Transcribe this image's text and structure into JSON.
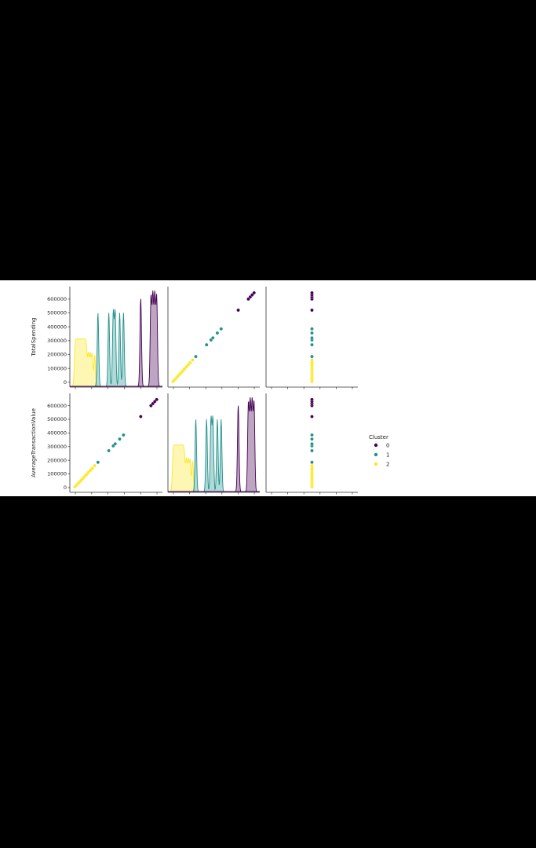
{
  "chart_data": {
    "type": "scatter",
    "variables": [
      "TotalSpending",
      "AverageTransactionValue"
    ],
    "ylabels": [
      "TotalSpending",
      "AverageTransactionValue"
    ],
    "yticks": [
      0,
      100000,
      200000,
      300000,
      400000,
      500000,
      600000
    ],
    "ytick_labels": [
      "0",
      "100000",
      "200000",
      "300000",
      "400000",
      "500000",
      "600000"
    ],
    "grid": false,
    "legend": {
      "title": "Cluster",
      "placement": "right",
      "entries": [
        {
          "label": "0",
          "color": "#440154"
        },
        {
          "label": "1",
          "color": "#21918c"
        },
        {
          "label": "2",
          "color": "#fde725"
        }
      ]
    },
    "series": [
      {
        "cluster": "0",
        "color": "#440154",
        "values": [
          520000,
          600000,
          615000,
          630000,
          645000
        ]
      },
      {
        "cluster": "1",
        "color": "#21918c",
        "values": [
          185000,
          270000,
          305000,
          320000,
          355000,
          385000
        ]
      },
      {
        "cluster": "2",
        "color": "#fde725",
        "values": [
          5000,
          15000,
          25000,
          35000,
          45000,
          55000,
          65000,
          75000,
          85000,
          95000,
          110000,
          125000,
          140000,
          160000
        ]
      }
    ]
  }
}
